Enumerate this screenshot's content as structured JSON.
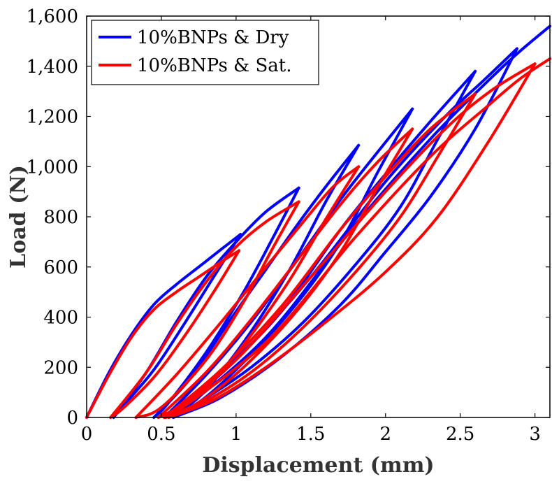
{
  "chart_data": {
    "type": "line",
    "title": "",
    "xlabel": "Displacement (mm)",
    "ylabel": "Load (N)",
    "xlim": [
      0,
      3.1
    ],
    "ylim": [
      0,
      1600
    ],
    "x_ticks": [
      0,
      0.5,
      1,
      1.5,
      2,
      2.5,
      3
    ],
    "x_tick_labels": [
      "0",
      "0.5",
      "1",
      "1.5",
      "2",
      "2.5",
      "3"
    ],
    "y_ticks": [
      0,
      200,
      400,
      600,
      800,
      1000,
      1200,
      1400,
      1600
    ],
    "y_tick_labels": [
      "0",
      "200",
      "400",
      "600",
      "800",
      "1,000",
      "1,200",
      "1,400",
      "1,600"
    ],
    "grid": false,
    "legend_position": "top-left",
    "series": [
      {
        "name": "10%BNPs & Dry",
        "color": "#0000ff",
        "cycles": [
          {
            "load": [
              [
                0,
                0
              ],
              [
                0.15,
                180
              ],
              [
                0.3,
                330
              ],
              [
                0.45,
                450
              ],
              [
                0.6,
                530
              ],
              [
                0.75,
                600
              ],
              [
                0.9,
                670
              ],
              [
                1.03,
                730
              ]
            ],
            "unload": [
              [
                1.03,
                730
              ],
              [
                0.85,
                560
              ],
              [
                0.65,
                370
              ],
              [
                0.45,
                190
              ],
              [
                0.25,
                50
              ],
              [
                0.18,
                0
              ]
            ]
          },
          {
            "load": [
              [
                0.18,
                0
              ],
              [
                0.4,
                180
              ],
              [
                0.6,
                380
              ],
              [
                0.8,
                560
              ],
              [
                1.0,
                700
              ],
              [
                1.2,
                820
              ],
              [
                1.42,
                915
              ]
            ],
            "unload": [
              [
                1.42,
                915
              ],
              [
                1.25,
                720
              ],
              [
                1.05,
                500
              ],
              [
                0.8,
                260
              ],
              [
                0.55,
                60
              ],
              [
                0.45,
                0
              ]
            ]
          },
          {
            "load": [
              [
                0.45,
                0
              ],
              [
                0.7,
                160
              ],
              [
                0.95,
                380
              ],
              [
                1.2,
                590
              ],
              [
                1.4,
                760
              ],
              [
                1.6,
                920
              ],
              [
                1.82,
                1085
              ]
            ],
            "unload": [
              [
                1.82,
                1085
              ],
              [
                1.6,
                860
              ],
              [
                1.35,
                580
              ],
              [
                1.05,
                300
              ],
              [
                0.75,
                80
              ],
              [
                0.52,
                0
              ]
            ]
          },
          {
            "load": [
              [
                0.52,
                0
              ],
              [
                0.8,
                170
              ],
              [
                1.1,
                380
              ],
              [
                1.4,
                620
              ],
              [
                1.7,
                870
              ],
              [
                1.95,
                1060
              ],
              [
                2.18,
                1230
              ]
            ],
            "unload": [
              [
                2.18,
                1230
              ],
              [
                1.95,
                980
              ],
              [
                1.7,
                700
              ],
              [
                1.4,
                450
              ],
              [
                1.05,
                220
              ],
              [
                0.75,
                60
              ],
              [
                0.53,
                0
              ]
            ]
          },
          {
            "load": [
              [
                0.53,
                0
              ],
              [
                0.9,
                180
              ],
              [
                1.3,
                420
              ],
              [
                1.7,
                750
              ],
              [
                2.0,
                970
              ],
              [
                2.3,
                1180
              ],
              [
                2.6,
                1380
              ]
            ],
            "unload": [
              [
                2.6,
                1380
              ],
              [
                2.35,
                1110
              ],
              [
                2.1,
                840
              ],
              [
                1.8,
                610
              ],
              [
                1.45,
                380
              ],
              [
                1.1,
                200
              ],
              [
                0.75,
                60
              ],
              [
                0.55,
                0
              ]
            ]
          },
          {
            "load": [
              [
                0.55,
                0
              ],
              [
                1.0,
                230
              ],
              [
                1.5,
                560
              ],
              [
                2.0,
                940
              ],
              [
                2.4,
                1200
              ],
              [
                2.65,
                1340
              ],
              [
                2.88,
                1470
              ]
            ],
            "unload": [
              [
                2.88,
                1470
              ],
              [
                2.6,
                1150
              ],
              [
                2.3,
                880
              ],
              [
                2.0,
                660
              ],
              [
                1.7,
                450
              ],
              [
                1.3,
                240
              ],
              [
                0.9,
                80
              ],
              [
                0.58,
                0
              ]
            ]
          },
          {
            "load": [
              [
                0.58,
                0
              ],
              [
                1.2,
                320
              ],
              [
                1.8,
                770
              ],
              [
                2.3,
                1110
              ],
              [
                2.7,
                1350
              ],
              [
                2.9,
                1460
              ],
              [
                3.1,
                1560
              ]
            ],
            "unload": []
          }
        ]
      },
      {
        "name": "10%BNPs & Sat.",
        "color": "#ff0000",
        "cycles": [
          {
            "load": [
              [
                0,
                0
              ],
              [
                0.15,
                170
              ],
              [
                0.3,
                320
              ],
              [
                0.45,
                430
              ],
              [
                0.6,
                500
              ],
              [
                0.75,
                560
              ],
              [
                0.9,
                620
              ],
              [
                1.02,
                665
              ]
            ],
            "unload": [
              [
                1.02,
                665
              ],
              [
                0.85,
                500
              ],
              [
                0.65,
                320
              ],
              [
                0.45,
                160
              ],
              [
                0.25,
                40
              ],
              [
                0.16,
                0
              ]
            ]
          },
          {
            "load": [
              [
                0.16,
                0
              ],
              [
                0.4,
                180
              ],
              [
                0.6,
                370
              ],
              [
                0.8,
                540
              ],
              [
                1.0,
                680
              ],
              [
                1.2,
                780
              ],
              [
                1.42,
                860
              ]
            ],
            "unload": [
              [
                1.42,
                860
              ],
              [
                1.25,
                680
              ],
              [
                1.05,
                460
              ],
              [
                0.8,
                230
              ],
              [
                0.5,
                40
              ],
              [
                0.33,
                0
              ]
            ]
          },
          {
            "load": [
              [
                0.33,
                0
              ],
              [
                0.6,
                170
              ],
              [
                0.9,
                380
              ],
              [
                1.2,
                600
              ],
              [
                1.45,
                780
              ],
              [
                1.65,
                920
              ],
              [
                1.82,
                1000
              ]
            ],
            "unload": [
              [
                1.82,
                1000
              ],
              [
                1.6,
                790
              ],
              [
                1.35,
                540
              ],
              [
                1.05,
                290
              ],
              [
                0.75,
                90
              ],
              [
                0.48,
                0
              ]
            ]
          },
          {
            "load": [
              [
                0.48,
                0
              ],
              [
                0.8,
                180
              ],
              [
                1.1,
                390
              ],
              [
                1.4,
                620
              ],
              [
                1.7,
                850
              ],
              [
                1.95,
                1020
              ],
              [
                2.18,
                1150
              ]
            ],
            "unload": [
              [
                2.18,
                1150
              ],
              [
                1.95,
                920
              ],
              [
                1.7,
                660
              ],
              [
                1.4,
                420
              ],
              [
                1.05,
                200
              ],
              [
                0.75,
                60
              ],
              [
                0.52,
                0
              ]
            ]
          },
          {
            "load": [
              [
                0.52,
                0
              ],
              [
                0.9,
                190
              ],
              [
                1.3,
                440
              ],
              [
                1.7,
                750
              ],
              [
                2.0,
                960
              ],
              [
                2.3,
                1150
              ],
              [
                2.6,
                1290
              ]
            ],
            "unload": [
              [
                2.6,
                1290
              ],
              [
                2.35,
                1040
              ],
              [
                2.1,
                800
              ],
              [
                1.8,
                580
              ],
              [
                1.45,
                360
              ],
              [
                1.1,
                180
              ],
              [
                0.75,
                50
              ],
              [
                0.53,
                0
              ]
            ]
          },
          {
            "load": [
              [
                0.53,
                0
              ],
              [
                1.0,
                230
              ],
              [
                1.5,
                560
              ],
              [
                2.0,
                900
              ],
              [
                2.4,
                1150
              ],
              [
                2.7,
                1300
              ],
              [
                3.0,
                1410
              ]
            ],
            "unload": [
              [
                3.0,
                1410
              ],
              [
                2.7,
                1110
              ],
              [
                2.35,
                800
              ],
              [
                2.0,
                580
              ],
              [
                1.6,
                380
              ],
              [
                1.2,
                200
              ],
              [
                0.85,
                70
              ],
              [
                0.55,
                0
              ]
            ]
          },
          {
            "load": [
              [
                0.55,
                0
              ],
              [
                1.2,
                300
              ],
              [
                1.8,
                720
              ],
              [
                2.3,
                1040
              ],
              [
                2.7,
                1250
              ],
              [
                2.9,
                1350
              ],
              [
                3.1,
                1430
              ]
            ],
            "unload": []
          }
        ]
      }
    ]
  }
}
